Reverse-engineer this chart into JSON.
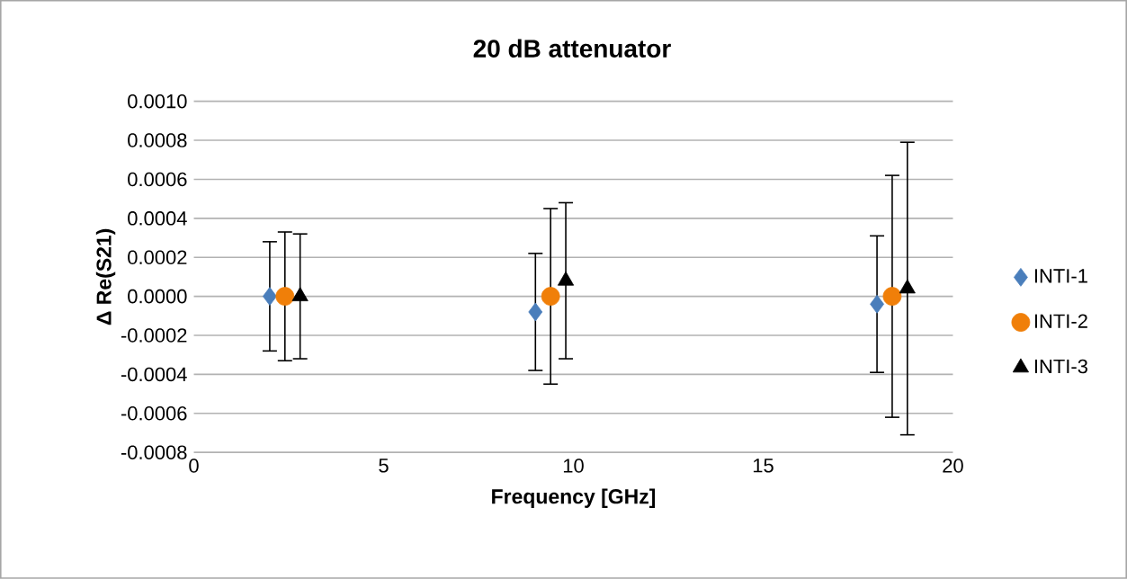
{
  "chart_data": {
    "type": "scatter",
    "title": "20 dB attenuator",
    "xlabel": "Frequency [GHz]",
    "ylabel": "Δ Re(S21)",
    "series": [
      {
        "name": "INTI-1",
        "color": "#4a7ebb",
        "marker": "diamond",
        "x": [
          2,
          9,
          18
        ],
        "values": [
          0.0,
          -8e-05,
          -4e-05
        ],
        "errors": [
          0.00028,
          0.0003,
          0.00035
        ]
      },
      {
        "name": "INTI-2",
        "color": "#f07f09",
        "marker": "circle",
        "x": [
          2.4,
          9.4,
          18.4
        ],
        "values": [
          0.0,
          0.0,
          0.0
        ],
        "errors": [
          0.00033,
          0.00045,
          0.00062
        ]
      },
      {
        "name": "INTI-3",
        "color": "#000000",
        "marker": "triangle",
        "x": [
          2.8,
          9.8,
          18.8
        ],
        "values": [
          0.0,
          8e-05,
          4e-05
        ],
        "errors": [
          0.00032,
          0.0004,
          0.00075
        ]
      }
    ],
    "xlim": [
      0,
      20
    ],
    "xticks": [
      0,
      5,
      10,
      15,
      20
    ],
    "ylim": [
      -0.0008,
      0.001
    ],
    "yticks": [
      {
        "value": -0.0008,
        "label": "-0.0008"
      },
      {
        "value": -0.0006,
        "label": "-0.0006"
      },
      {
        "value": -0.0004,
        "label": "-0.0004"
      },
      {
        "value": -0.0002,
        "label": "-0.0002"
      },
      {
        "value": 0,
        "label": "0.0000"
      },
      {
        "value": 0.0002,
        "label": "0.0002"
      },
      {
        "value": 0.0004,
        "label": "0.0004"
      },
      {
        "value": 0.0006,
        "label": "0.0006"
      },
      {
        "value": 0.0008,
        "label": "0.0008"
      },
      {
        "value": 0.001,
        "label": "0.0010"
      }
    ],
    "grid": "y",
    "legend": "right"
  }
}
